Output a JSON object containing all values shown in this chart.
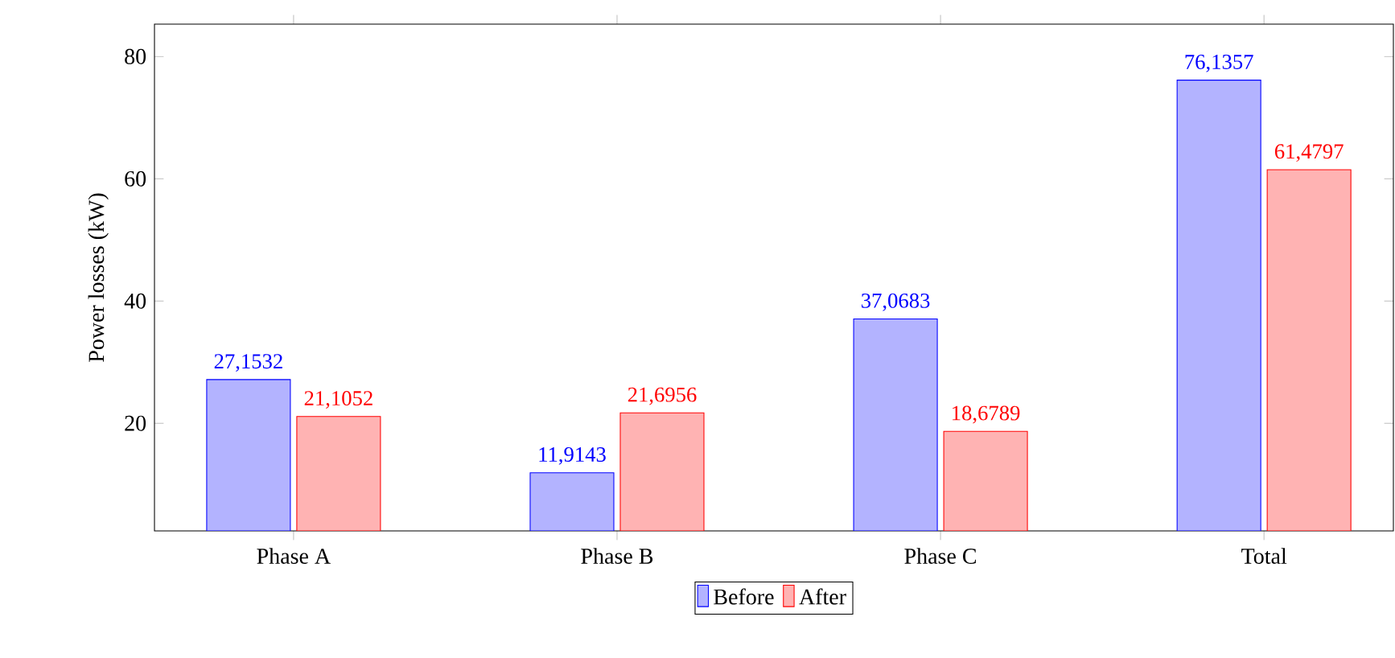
{
  "chart_data": {
    "type": "bar",
    "ylabel": "Power losses (kW)",
    "categories": [
      "Phase A",
      "Phase B",
      "Phase C",
      "Total"
    ],
    "series": [
      {
        "name": "Before",
        "color": "#b3b3ff",
        "values": [
          27.1532,
          11.9143,
          37.0683,
          76.1357
        ],
        "value_labels": [
          "27,1532",
          "11,9143",
          "37,0683",
          "76,1357"
        ]
      },
      {
        "name": "After",
        "color": "#ffb3b3",
        "values": [
          21.1052,
          21.6956,
          18.6789,
          61.4797
        ],
        "value_labels": [
          "21,1052",
          "21,6956",
          "18,6789",
          "61,4797"
        ]
      }
    ],
    "ylim": [
      2.4,
      85.3
    ],
    "yticks": [
      20,
      40,
      60,
      80
    ],
    "grid": false,
    "legend": "bottom"
  }
}
